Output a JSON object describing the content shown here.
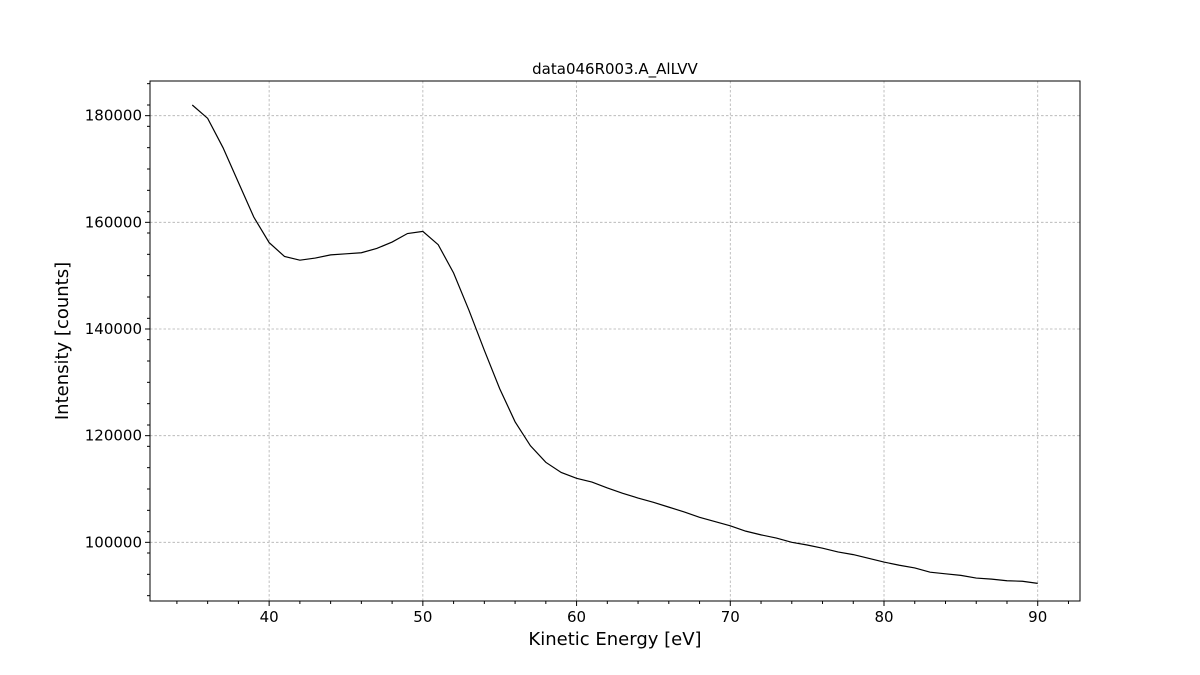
{
  "chart_data": {
    "type": "line",
    "title": "data046R003.A_AlLVV",
    "xlabel": "Kinetic Energy [eV]",
    "ylabel": "Intensity [counts]",
    "xlim": [
      32.25,
      92.75
    ],
    "ylim": [
      89000,
      186500
    ],
    "x_ticks": [
      40,
      50,
      60,
      70,
      80,
      90
    ],
    "x_tick_labels": [
      "40",
      "50",
      "60",
      "70",
      "80",
      "90"
    ],
    "y_ticks": [
      100000,
      120000,
      140000,
      160000,
      180000
    ],
    "y_tick_labels": [
      "100000",
      "120000",
      "140000",
      "160000",
      "180000"
    ],
    "grid": true,
    "legend": "none",
    "series": [
      {
        "color": "#000000",
        "x": [
          35,
          36,
          37,
          38,
          39,
          40,
          41,
          42,
          43,
          44,
          45,
          46,
          47,
          48,
          49,
          50,
          51,
          52,
          53,
          54,
          55,
          56,
          57,
          58,
          59,
          60,
          61,
          62,
          63,
          64,
          65,
          66,
          67,
          68,
          69,
          70,
          71,
          72,
          73,
          74,
          75,
          76,
          77,
          78,
          79,
          80,
          81,
          82,
          83,
          84,
          85,
          86,
          87,
          88,
          89,
          90
        ],
        "y": [
          182000,
          179500,
          174000,
          167500,
          161000,
          156200,
          153600,
          152900,
          153300,
          153900,
          154100,
          154300,
          155100,
          156300,
          157900,
          158300,
          155800,
          150500,
          143500,
          136000,
          128800,
          122600,
          118100,
          115000,
          113100,
          112000,
          111300,
          110200,
          109200,
          108300,
          107500,
          106600,
          105700,
          104700,
          103900,
          103100,
          102100,
          101400,
          100800,
          100000,
          99500,
          98900,
          98200,
          97700,
          97000,
          96300,
          95700,
          95200,
          94400,
          94100,
          93800,
          93300,
          93100,
          92800,
          92700,
          92300
        ]
      }
    ]
  }
}
